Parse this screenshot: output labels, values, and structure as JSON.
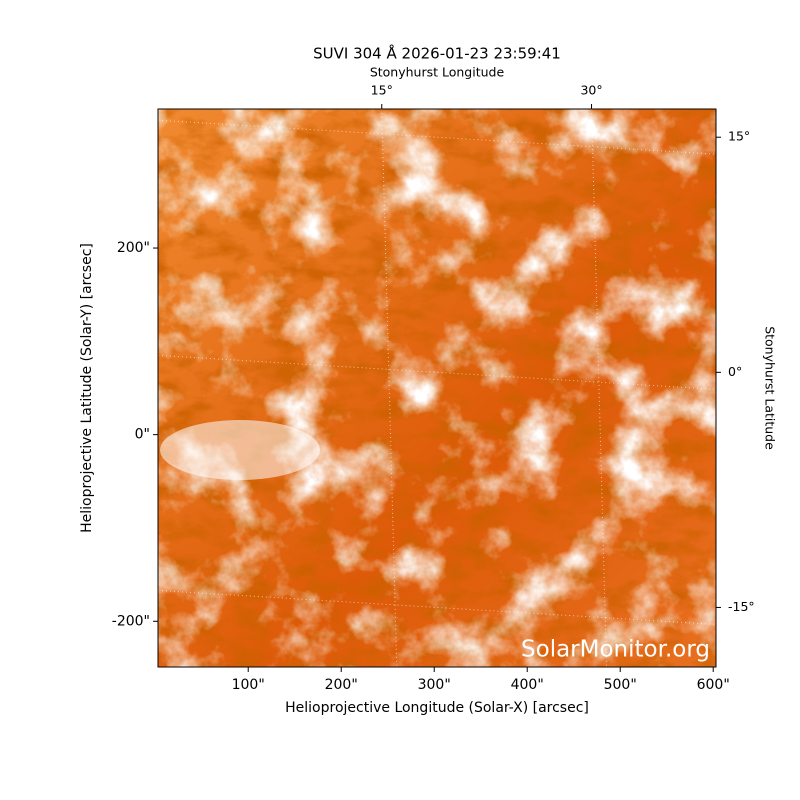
{
  "chart_data": {
    "type": "image",
    "title": "SUVI 304 Å 2026-01-23 23:59:41",
    "xlabel": "Helioprojective Longitude (Solar-X) [arcsec]",
    "ylabel": "Helioprojective Latitude (Solar-Y) [arcsec]",
    "x2label": "Stonyhurst Longitude",
    "y2label": "Stonyhurst Latitude",
    "watermark": "SolarMonitor.org",
    "xlim": [
      3,
      603
    ],
    "ylim": [
      -249,
      349
    ],
    "xticks": [
      {
        "value": 100,
        "label": "100\""
      },
      {
        "value": 200,
        "label": "200\""
      },
      {
        "value": 300,
        "label": "300\""
      },
      {
        "value": 400,
        "label": "400\""
      },
      {
        "value": 500,
        "label": "500\""
      },
      {
        "value": 600,
        "label": "600\""
      }
    ],
    "yticks": [
      {
        "value": -200,
        "label": "-200\""
      },
      {
        "value": 0,
        "label": "0\""
      },
      {
        "value": 200,
        "label": "200\""
      }
    ],
    "x2lim": [
      -1,
      38.9
    ],
    "x2ticks": [
      {
        "value": 15,
        "label": "15°"
      },
      {
        "value": 30,
        "label": "30°"
      }
    ],
    "y2lim": [
      -18.8,
      16.8
    ],
    "y2ticks": [
      {
        "value": -15,
        "label": "-15°"
      },
      {
        "value": 0,
        "label": "0°"
      },
      {
        "value": 15,
        "label": "15°"
      }
    ],
    "grid": true
  }
}
